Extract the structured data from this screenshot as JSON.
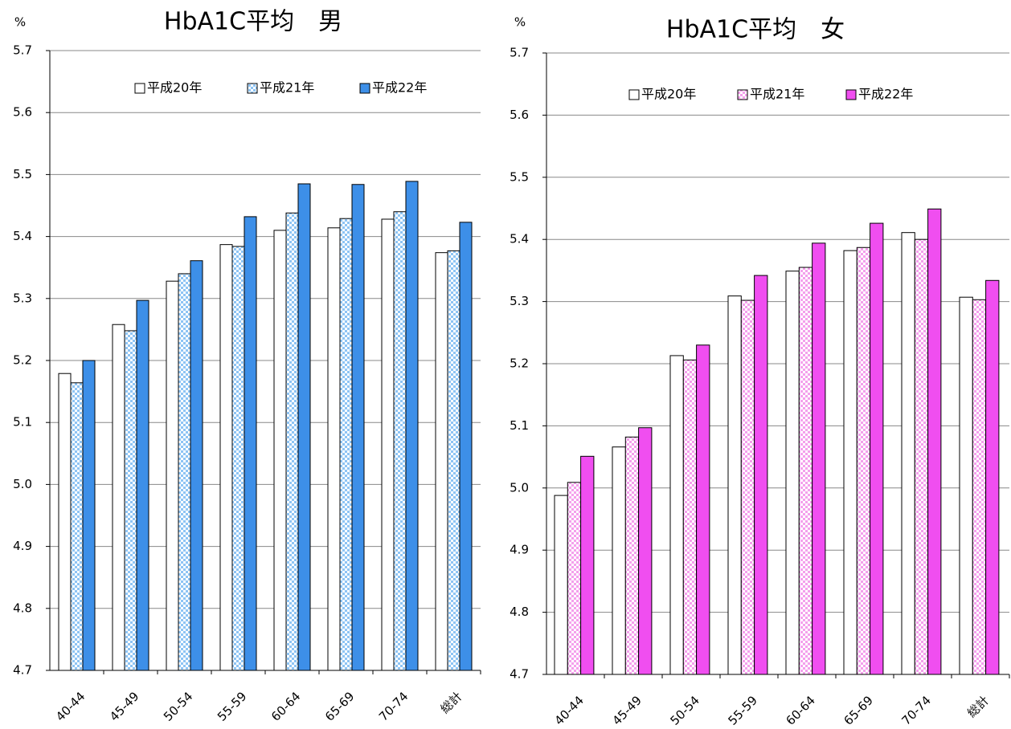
{
  "chart_data": [
    {
      "type": "bar",
      "title": "HbA1C平均　男",
      "ylabel": "%",
      "categories": [
        "40-44",
        "45-49",
        "50-54",
        "55-59",
        "60-64",
        "65-69",
        "70-74",
        "総計"
      ],
      "series": [
        {
          "name": "平成20年",
          "color": "#ffffff",
          "values": [
            5.179,
            5.258,
            5.328,
            5.387,
            5.41,
            5.414,
            5.428,
            5.374
          ]
        },
        {
          "name": "平成21年",
          "color": "#8ec4f4",
          "pattern": "checker",
          "values": [
            5.164,
            5.248,
            5.34,
            5.384,
            5.438,
            5.429,
            5.44,
            5.377
          ]
        },
        {
          "name": "平成22年",
          "color": "#3d8fe8",
          "values": [
            5.2,
            5.297,
            5.361,
            5.432,
            5.485,
            5.484,
            5.489,
            5.423
          ]
        }
      ],
      "ylim": [
        4.7,
        5.7
      ],
      "yticks": [
        4.7,
        4.8,
        4.9,
        {
          "value": 5.0,
          "label": "5.0"
        },
        5.1,
        5.2,
        5.3,
        5.4,
        5.5,
        5.6,
        5.7
      ],
      "grid": true,
      "legend": "top"
    },
    {
      "type": "bar",
      "title": "HbA1C平均　女",
      "ylabel": "%",
      "categories": [
        "40-44",
        "45-49",
        "50-54",
        "55-59",
        "60-64",
        "65-69",
        "70-74",
        "総計"
      ],
      "series": [
        {
          "name": "平成20年",
          "color": "#ffffff",
          "values": [
            4.988,
            5.066,
            5.213,
            5.309,
            5.349,
            5.382,
            5.411,
            5.307
          ]
        },
        {
          "name": "平成21年",
          "color": "#f4a0ec",
          "pattern": "checker",
          "values": [
            5.009,
            5.082,
            5.206,
            5.302,
            5.355,
            5.387,
            5.4,
            5.303
          ]
        },
        {
          "name": "平成22年",
          "color": "#f04ef0",
          "values": [
            5.051,
            5.097,
            5.23,
            5.342,
            5.394,
            5.426,
            5.449,
            5.334
          ]
        }
      ],
      "ylim": [
        4.7,
        5.7
      ],
      "yticks": [
        4.7,
        4.8,
        4.9,
        {
          "value": 5.0,
          "label": "5.0"
        },
        5.1,
        5.2,
        5.3,
        5.4,
        5.5,
        5.6,
        5.7
      ],
      "grid": true,
      "legend": "top"
    }
  ]
}
